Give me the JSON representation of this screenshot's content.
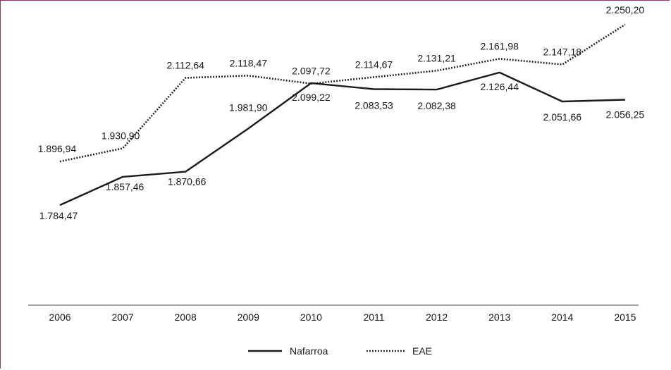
{
  "chart_data": {
    "type": "line",
    "title": "",
    "xlabel": "",
    "ylabel": "",
    "categories": [
      "2006",
      "2007",
      "2008",
      "2009",
      "2010",
      "2011",
      "2012",
      "2013",
      "2014",
      "2015"
    ],
    "series": [
      {
        "name": "Nafarroa",
        "line_style": "solid",
        "values": [
          1784.47,
          1857.46,
          1870.66,
          1981.9,
          2099.22,
          2083.53,
          2082.38,
          2126.44,
          2051.66,
          2056.25
        ],
        "labels": [
          "1.784,47",
          "1.857,46",
          "1.870,66",
          "1.981,90",
          "2.099,22",
          "2.083,53",
          "2.082,38",
          "2.126,44",
          "2.051,66",
          "2.056,25"
        ]
      },
      {
        "name": "EAE",
        "line_style": "dotted",
        "values": [
          1896.94,
          1930.9,
          2112.64,
          2118.47,
          2097.72,
          2114.67,
          2131.21,
          2161.98,
          2147.18,
          2250.2
        ],
        "labels": [
          "1.896,94",
          "1.930,90",
          "2.112,64",
          "2.118,47",
          "2.097,72",
          "2.114,67",
          "2.131,21",
          "2.161,98",
          "2.147,18",
          "2.250,20"
        ]
      }
    ],
    "grid": false,
    "legend_position": "bottom-center",
    "colors": {
      "line": "#1a1a1a",
      "border": "#8e3a6e"
    }
  }
}
